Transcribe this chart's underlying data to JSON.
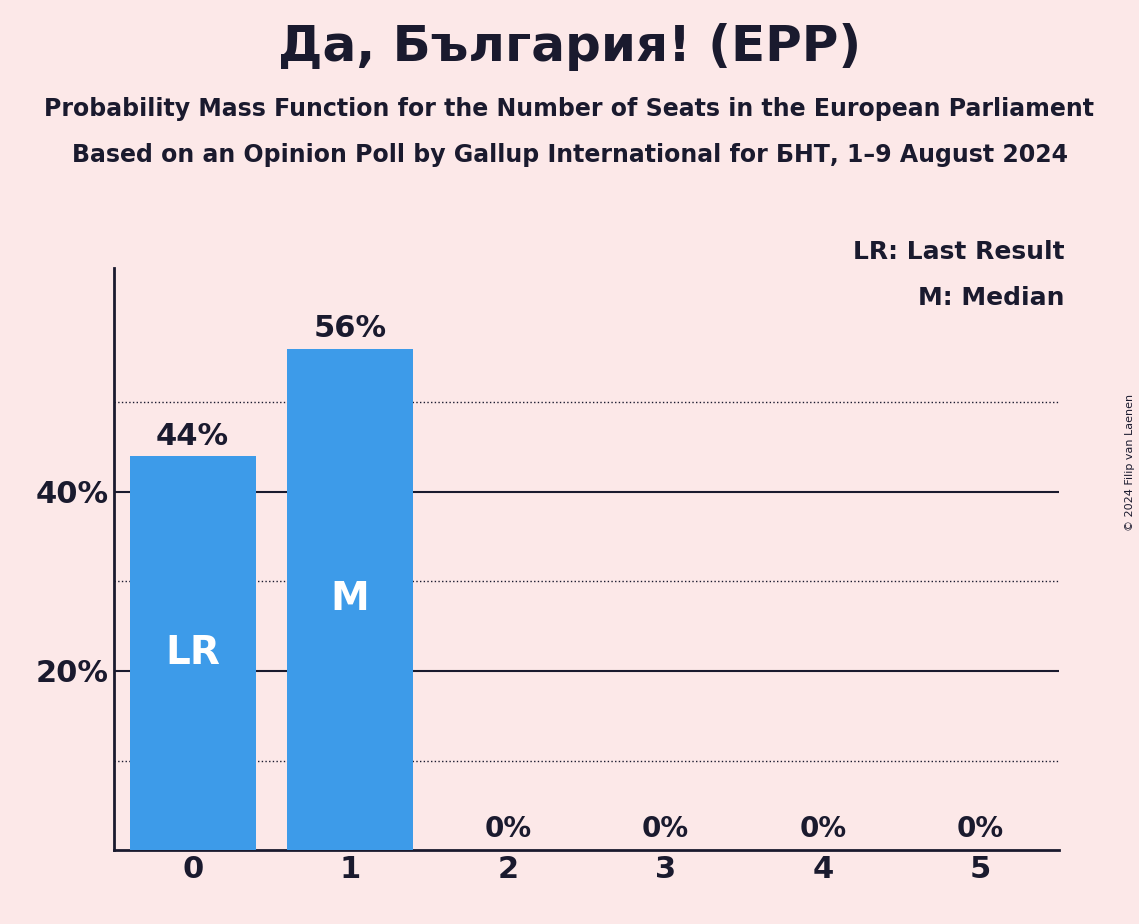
{
  "title": "Да, България! (EPP)",
  "subtitle1": "Probability Mass Function for the Number of Seats in the European Parliament",
  "subtitle2": "Based on an Opinion Poll by Gallup International for БНТ, 1–9 August 2024",
  "copyright": "© 2024 Filip van Laenen",
  "categories": [
    0,
    1,
    2,
    3,
    4,
    5
  ],
  "values": [
    0.44,
    0.56,
    0.0,
    0.0,
    0.0,
    0.0
  ],
  "bar_color": "#3d9be9",
  "background_color": "#fce8e8",
  "text_color": "#1a1a2e",
  "bar_labels_nonzero": [
    "44%",
    "56%"
  ],
  "bar_labels_zero": [
    "0%",
    "0%",
    "0%",
    "0%"
  ],
  "lr_bar": 0,
  "median_bar": 1,
  "lr_label": "LR",
  "median_label": "M",
  "legend_lr": "LR: Last Result",
  "legend_m": "M: Median",
  "solid_gridlines": [
    0.2,
    0.4
  ],
  "dotted_gridlines": [
    0.5,
    0.3,
    0.1
  ],
  "ylim": [
    0,
    0.65
  ],
  "ytick_positions": [
    0.2,
    0.4
  ],
  "ytick_labels": [
    "20%",
    "40%"
  ]
}
